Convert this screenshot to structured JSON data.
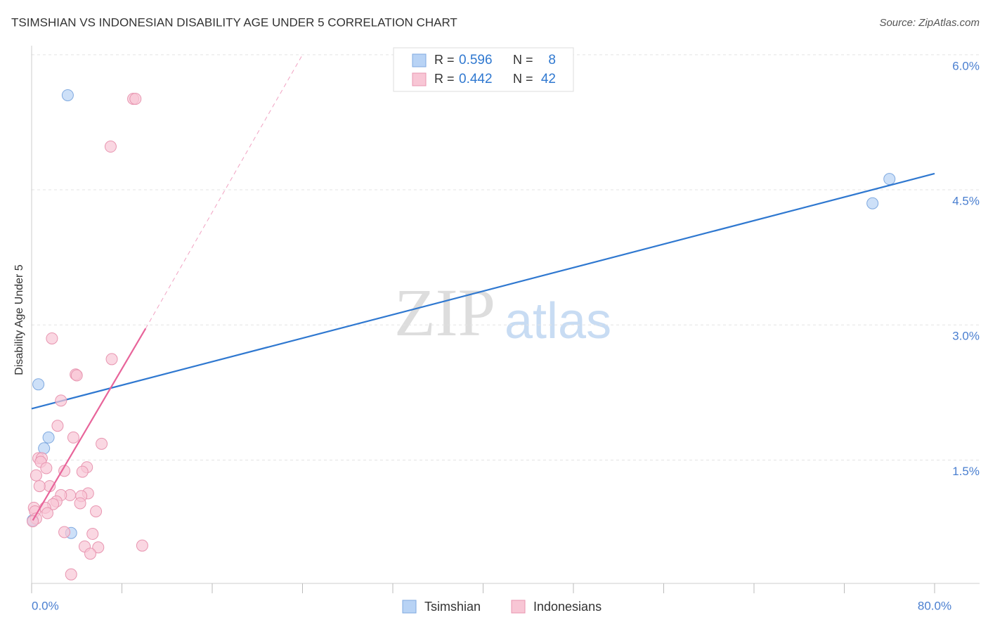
{
  "chart_data": {
    "type": "scatter",
    "title": "TSIMSHIAN VS INDONESIAN DISABILITY AGE UNDER 5 CORRELATION CHART",
    "source": "Source: ZipAtlas.com",
    "y_label": "Disability Age Under 5",
    "watermark": [
      "ZIP",
      "atlas"
    ],
    "xlim": [
      0,
      80
    ],
    "ylim": [
      0.13,
      6.1
    ],
    "xticks": [
      {
        "value": 0,
        "label": "0.0%"
      },
      {
        "value": 80,
        "label": "80.0%"
      }
    ],
    "xminor_ticks": [
      8,
      16,
      24,
      32,
      40,
      48,
      56,
      64,
      72
    ],
    "yticks": [
      {
        "value": 1.5,
        "label": "1.5%"
      },
      {
        "value": 3.0,
        "label": "3.0%"
      },
      {
        "value": 4.5,
        "label": "4.5%"
      },
      {
        "value": 6.0,
        "label": "6.0%"
      }
    ],
    "grid": true,
    "stat_labels": {
      "r": "R =",
      "n": "N ="
    },
    "series": [
      {
        "name": "Tsimshian",
        "color": "#b8d3f5",
        "edge": "#7fa9e0",
        "line_color": "#2f78d0",
        "r": 0.596,
        "n": 8,
        "x": [
          3.2,
          76.0,
          74.5,
          0.6,
          1.5,
          1.1,
          3.5,
          0.1
        ],
        "values": [
          5.55,
          4.62,
          4.35,
          2.34,
          1.75,
          1.63,
          0.69,
          0.83
        ],
        "trend": {
          "x": [
            0,
            80
          ],
          "y": [
            2.07,
            4.68
          ]
        }
      },
      {
        "name": "Indonesians",
        "color": "#f8c6d5",
        "edge": "#e895b0",
        "line_color": "#e8649a",
        "r": 0.442,
        "n": 42,
        "x": [
          9.0,
          9.2,
          7.0,
          1.8,
          7.1,
          3.9,
          4.0,
          2.6,
          2.3,
          3.7,
          6.2,
          0.6,
          0.9,
          0.8,
          1.3,
          4.9,
          2.9,
          4.5,
          0.4,
          1.6,
          0.7,
          3.4,
          2.6,
          5.0,
          4.4,
          2.2,
          4.3,
          1.9,
          1.2,
          0.2,
          5.7,
          1.4,
          0.3,
          0.4,
          0.1,
          2.9,
          5.4,
          9.8,
          4.7,
          5.9,
          5.2,
          3.5
        ],
        "values": [
          5.51,
          5.51,
          4.98,
          2.85,
          2.62,
          2.45,
          2.44,
          2.16,
          1.88,
          1.75,
          1.68,
          1.52,
          1.52,
          1.48,
          1.41,
          1.42,
          1.38,
          1.37,
          1.33,
          1.21,
          1.21,
          1.11,
          1.11,
          1.13,
          1.1,
          1.04,
          1.02,
          1.01,
          0.97,
          0.97,
          0.93,
          0.91,
          0.93,
          0.85,
          0.82,
          0.7,
          0.68,
          0.55,
          0.54,
          0.53,
          0.46,
          0.23
        ],
        "trend": {
          "x": [
            0.1,
            10.1,
            24.0
          ],
          "y": [
            0.83,
            2.96,
            6.0
          ]
        }
      }
    ]
  }
}
